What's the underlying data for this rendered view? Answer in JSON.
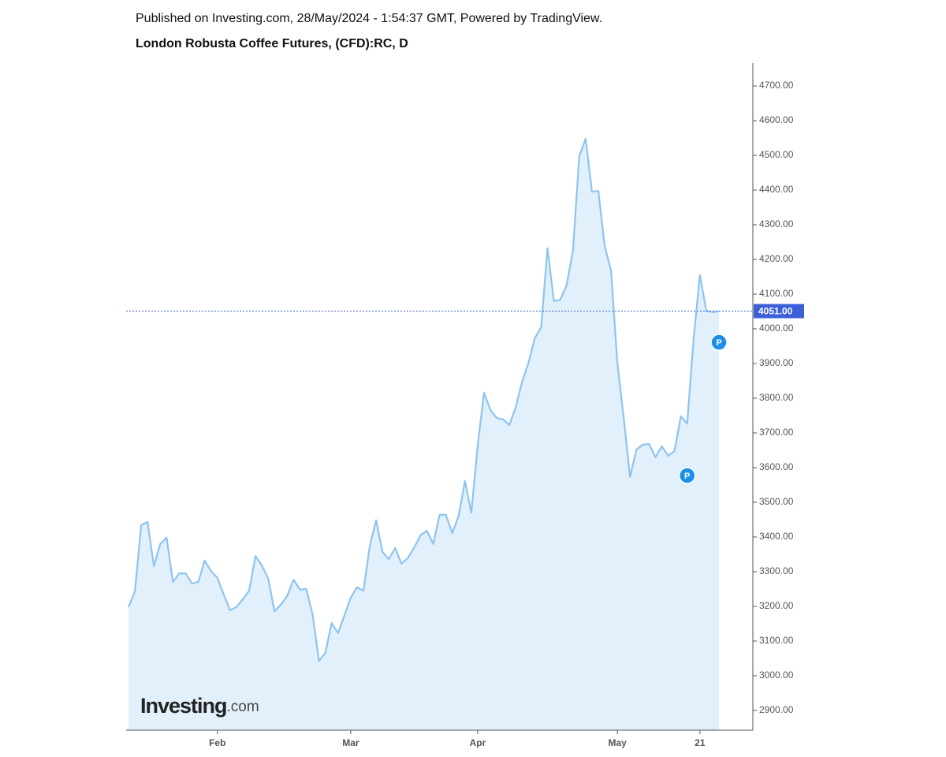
{
  "chart_data": {
    "type": "area",
    "published": "Published on Investing.com, 28/May/2024 - 1:54:37 GMT, Powered by TradingView.",
    "title": "London Robusta Coffee Futures, (CFD):RC, D",
    "categories": [
      null,
      null,
      null,
      null,
      null,
      null,
      null,
      null,
      null,
      null,
      null,
      null,
      null,
      null,
      "Feb",
      null,
      null,
      null,
      null,
      null,
      null,
      null,
      null,
      null,
      null,
      null,
      null,
      null,
      null,
      null,
      null,
      null,
      null,
      null,
      null,
      "Mar",
      null,
      null,
      null,
      null,
      null,
      null,
      null,
      null,
      null,
      null,
      null,
      null,
      null,
      null,
      null,
      null,
      null,
      null,
      null,
      "Apr",
      null,
      null,
      null,
      null,
      null,
      null,
      null,
      null,
      null,
      null,
      null,
      null,
      null,
      null,
      null,
      null,
      null,
      null,
      null,
      null,
      null,
      "May",
      null,
      null,
      null,
      null,
      null,
      null,
      null,
      null,
      null,
      null,
      null,
      null,
      "21",
      null,
      null,
      null
    ],
    "values": [
      3198,
      3243,
      3434,
      3443,
      3316,
      3380,
      3398,
      3270,
      3295,
      3295,
      3266,
      3270,
      3332,
      3302,
      3282,
      3234,
      3189,
      3198,
      3220,
      3245,
      3345,
      3318,
      3280,
      3186,
      3205,
      3230,
      3277,
      3248,
      3250,
      3175,
      3043,
      3066,
      3152,
      3123,
      3173,
      3225,
      3255,
      3245,
      3373,
      3448,
      3357,
      3336,
      3368,
      3323,
      3339,
      3370,
      3405,
      3418,
      3380,
      3464,
      3464,
      3411,
      3461,
      3561,
      3470,
      3664,
      3816,
      3766,
      3743,
      3739,
      3723,
      3775,
      3848,
      3902,
      3973,
      4005,
      4232,
      4080,
      4084,
      4125,
      4225,
      4498,
      4548,
      4395,
      4398,
      4239,
      4168,
      3902,
      3743,
      3573,
      3652,
      3666,
      3668,
      3630,
      3661,
      3634,
      3648,
      3748,
      3727,
      3970,
      4155,
      4052,
      4048,
      4051
    ],
    "line_color": "#8ec4f0",
    "fill_color": "#e1f0fa",
    "ylim": [
      2843,
      4766
    ],
    "yticks": [
      {
        "value": 2900,
        "label": "2900.00"
      },
      {
        "value": 3000,
        "label": "3000.00"
      },
      {
        "value": 3100,
        "label": "3100.00"
      },
      {
        "value": 3200,
        "label": "3200.00"
      },
      {
        "value": 3300,
        "label": "3300.00"
      },
      {
        "value": 3400,
        "label": "3400.00"
      },
      {
        "value": 3500,
        "label": "3500.00"
      },
      {
        "value": 3600,
        "label": "3600.00"
      },
      {
        "value": 3700,
        "label": "3700.00"
      },
      {
        "value": 3800,
        "label": "3800.00"
      },
      {
        "value": 3900,
        "label": "3900.00"
      },
      {
        "value": 4000,
        "label": "4000.00"
      },
      {
        "value": 4100,
        "label": "4100.00"
      },
      {
        "value": 4200,
        "label": "4200.00"
      },
      {
        "value": 4300,
        "label": "4300.00"
      },
      {
        "value": 4400,
        "label": "4400.00"
      },
      {
        "value": 4500,
        "label": "4500.00"
      },
      {
        "value": 4600,
        "label": "4600.00"
      },
      {
        "value": 4700,
        "label": "4700.00"
      }
    ],
    "current_value": {
      "value": 4051,
      "label": "4051.00"
    },
    "markers": [
      {
        "label": "P",
        "index": 93,
        "value": 3961
      },
      {
        "label": "P",
        "index": 88,
        "value": 3577
      }
    ],
    "logo": {
      "main": "Investing",
      "suffix": ".com"
    }
  }
}
